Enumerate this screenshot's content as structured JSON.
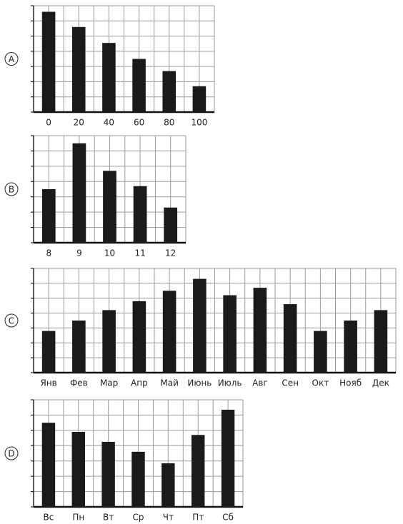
{
  "chart_data": [
    {
      "type": "bar",
      "label": "A",
      "categories": [
        "0",
        "20",
        "40",
        "60",
        "80",
        "100"
      ],
      "values": [
        6.6,
        5.6,
        4.55,
        3.5,
        2.7,
        1.7
      ],
      "color": "#1a1a1a",
      "ylim": [
        0,
        7
      ],
      "yticks": [
        0,
        1,
        2,
        3,
        4,
        5,
        6,
        7
      ],
      "grid": true
    },
    {
      "type": "bar",
      "label": "B",
      "categories": [
        "8",
        "9",
        "10",
        "11",
        "12"
      ],
      "values": [
        3.5,
        6.5,
        4.7,
        3.7,
        2.3
      ],
      "color": "#1a1a1a",
      "ylim": [
        0,
        7
      ],
      "yticks": [
        0,
        1,
        2,
        3,
        4,
        5,
        6,
        7
      ],
      "grid": true
    },
    {
      "type": "bar",
      "label": "C",
      "categories": [
        "Янв",
        "Фев",
        "Мар",
        "Апр",
        "Май",
        "Июнь",
        "Июль",
        "Авг",
        "Сен",
        "Окт",
        "Нояб",
        "Дек"
      ],
      "values": [
        2.8,
        3.5,
        4.2,
        4.8,
        5.5,
        6.3,
        5.2,
        5.7,
        4.6,
        2.8,
        3.5,
        4.2
      ],
      "color": "#1a1a1a",
      "ylim": [
        0,
        7
      ],
      "yticks": [
        0,
        1,
        2,
        3,
        4,
        5,
        6,
        7
      ],
      "grid": true
    },
    {
      "type": "bar",
      "label": "D",
      "categories": [
        "Вс",
        "Пн",
        "Вт",
        "Ср",
        "Чт",
        "Пт",
        "Сб"
      ],
      "values": [
        5.5,
        4.9,
        4.25,
        3.6,
        2.85,
        4.7,
        6.35
      ],
      "color": "#1a1a1a",
      "ylim": [
        0,
        7
      ],
      "yticks": [
        0,
        1,
        2,
        3,
        4,
        5,
        6,
        7
      ],
      "grid": true
    }
  ]
}
